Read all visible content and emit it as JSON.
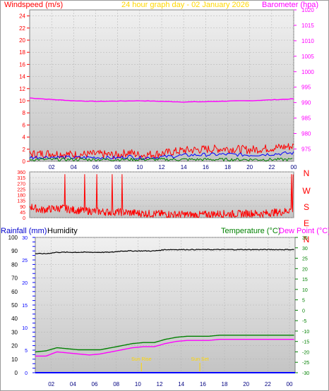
{
  "header": {
    "windspeed_label": "Windspeed (m/s)",
    "graph_title": "24 hour graph day - 02 January 2026",
    "barometer_label": "Barometer (hpa)"
  },
  "footer_labels": {
    "rainfall_label": "Rainfall (mm)",
    "humidity_label": "Humidity",
    "temperature_label": "Temperature (°C)",
    "dewpoint_label": "Dew Point (°C)"
  },
  "colors": {
    "windspeed": "#ff0000",
    "wind_avg": "#0000ff",
    "wind_green": "#008000",
    "barometer": "#ff00ff",
    "direction": "#ff0000",
    "rainfall": "#0000ff",
    "humidity": "#000000",
    "temperature": "#008000",
    "dewpoint": "#ff00ff",
    "title": "#ffd700",
    "plot_bg_top": "#f2f2f2",
    "plot_bg_bottom": "#c8c8c8"
  },
  "chart_data": [
    {
      "type": "line",
      "x_ticks": [
        "02",
        "04",
        "06",
        "08",
        "10",
        "12",
        "14",
        "16",
        "18",
        "20",
        "22",
        "00"
      ],
      "left_axis": {
        "label": "Windspeed (m/s)",
        "ylim": [
          0,
          25
        ],
        "ticks": [
          "0",
          "2",
          "4",
          "6",
          "8",
          "10",
          "12",
          "14",
          "16",
          "18",
          "20",
          "22",
          "24"
        ]
      },
      "right_axis": {
        "label": "Barometer (hpa)",
        "ylim": [
          971,
          1020
        ],
        "ticks": [
          "975",
          "980",
          "985",
          "990",
          "995",
          "1000",
          "1005",
          "1010",
          "1015",
          "1020"
        ]
      },
      "series": [
        {
          "name": "Windspeed (m/s)",
          "axis": "left",
          "x": [
            0,
            2,
            4,
            6,
            8,
            9,
            10,
            12,
            14,
            16,
            18,
            20,
            22,
            24
          ],
          "values": [
            1.2,
            1.3,
            1.1,
            1.2,
            1.0,
            1.5,
            1.0,
            1.3,
            1.8,
            2.0,
            2.1,
            1.9,
            2.2,
            2.5
          ]
        },
        {
          "name": "Barometer (hpa)",
          "axis": "right",
          "x": [
            0,
            2,
            4,
            6,
            8,
            10,
            12,
            14,
            16,
            18,
            20,
            22,
            24
          ],
          "values": [
            991.5,
            991.0,
            990.6,
            990.4,
            990.5,
            990.6,
            990.4,
            990.2,
            990.3,
            990.5,
            990.6,
            990.9,
            991.2
          ]
        }
      ]
    },
    {
      "type": "line",
      "x_ticks": [],
      "left_axis": {
        "ylim": [
          0,
          360
        ],
        "ticks": [
          "0",
          "45",
          "90",
          "135",
          "180",
          "225",
          "270",
          "315",
          "360"
        ]
      },
      "right_axis_labels": [
        "N",
        "W",
        "S",
        "E",
        "N"
      ],
      "series": [
        {
          "name": "Wind direction",
          "x": [
            0,
            1,
            2,
            3,
            4,
            5,
            6,
            7,
            8,
            9,
            10,
            11,
            12,
            13,
            14,
            15,
            16,
            17,
            18,
            19,
            20,
            21,
            22,
            23,
            24
          ],
          "values": [
            90,
            60,
            70,
            75,
            60,
            55,
            50,
            45,
            45,
            40,
            35,
            30,
            30,
            25,
            25,
            20,
            25,
            30,
            30,
            30,
            35,
            30,
            40,
            45,
            70
          ]
        }
      ]
    },
    {
      "type": "line",
      "x_ticks": [
        "02",
        "04",
        "06",
        "08",
        "10",
        "12",
        "14",
        "16",
        "18",
        "20",
        "22",
        "00"
      ],
      "left_axis": {
        "label": "Humidity",
        "ylim": [
          0,
          100
        ],
        "ticks": [
          "0",
          "10",
          "20",
          "30",
          "40",
          "50",
          "60",
          "70",
          "80",
          "90",
          "100"
        ]
      },
      "rain_axis": {
        "label": "Rainfall (mm)",
        "ylim": [
          0,
          30
        ],
        "ticks": [
          "0",
          "5",
          "10",
          "15",
          "20",
          "25",
          "30"
        ]
      },
      "right_axis": {
        "label": "Temperature (°C)",
        "ylim": [
          -30,
          35
        ],
        "ticks": [
          "-30",
          "-25",
          "-20",
          "-15",
          "-10",
          "-5",
          "0",
          "5",
          "10",
          "15",
          "20",
          "25",
          "30",
          "35"
        ]
      },
      "annotations": [
        "Sun Rise",
        "Sun Set"
      ],
      "series": [
        {
          "name": "Humidity",
          "axis": "left",
          "x": [
            0,
            1,
            2,
            3,
            4,
            5,
            6,
            7,
            8,
            9,
            10,
            11,
            12,
            13,
            14,
            15,
            16,
            17,
            18,
            19,
            20,
            21,
            22,
            23,
            24
          ],
          "values": [
            88,
            88,
            89,
            89,
            89,
            89,
            89,
            89,
            90,
            90,
            90,
            90,
            91,
            91,
            91,
            91,
            91,
            91,
            91,
            91,
            91,
            91,
            91,
            91,
            91
          ]
        },
        {
          "name": "Temperature (°C)",
          "axis": "right",
          "x": [
            0,
            1,
            2,
            3,
            4,
            5,
            6,
            7,
            8,
            9,
            10,
            11,
            12,
            13,
            14,
            15,
            16,
            17,
            18,
            19,
            20,
            21,
            22,
            23,
            24
          ],
          "values": [
            -20,
            -19.5,
            -18,
            -18.5,
            -19,
            -19,
            -19,
            -18,
            -17,
            -16,
            -15.5,
            -15.5,
            -14,
            -13,
            -12.5,
            -12.5,
            -12.5,
            -12,
            -12,
            -12,
            -12,
            -12,
            -12,
            -12,
            -12
          ]
        },
        {
          "name": "Dew Point (°C)",
          "axis": "right",
          "x": [
            0,
            1,
            2,
            3,
            4,
            5,
            6,
            7,
            8,
            9,
            10,
            11,
            12,
            13,
            14,
            15,
            16,
            17,
            18,
            19,
            20,
            21,
            22,
            23,
            24
          ],
          "values": [
            -22,
            -22,
            -20,
            -20.5,
            -21,
            -21.5,
            -21,
            -20,
            -19,
            -18,
            -17.5,
            -17.5,
            -16,
            -15,
            -14.5,
            -14.5,
            -14.5,
            -14,
            -14,
            -14,
            -14,
            -14,
            -14,
            -14,
            -14
          ]
        },
        {
          "name": "Rainfall (mm)",
          "axis": "rain",
          "x": [
            0,
            24
          ],
          "values": [
            0,
            0
          ]
        }
      ]
    }
  ]
}
